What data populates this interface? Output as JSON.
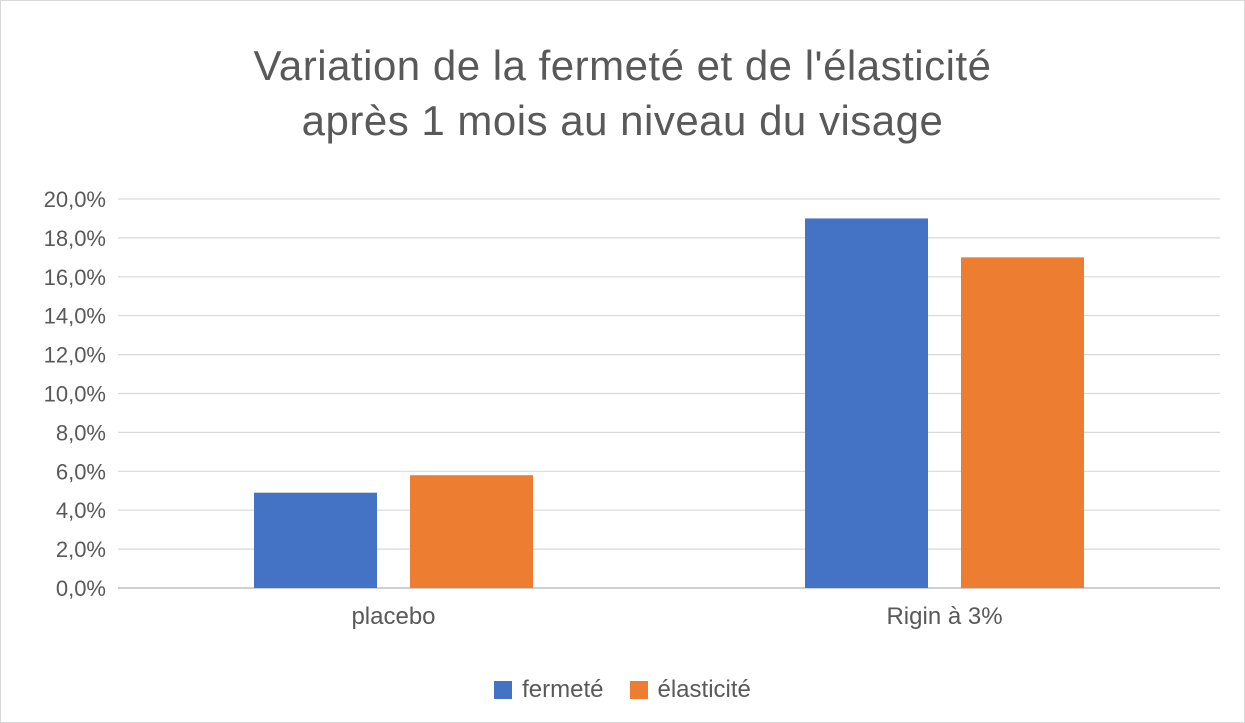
{
  "chart_data": {
    "type": "bar",
    "title_lines": [
      "Variation de la fermeté et de l'élasticité",
      "après 1 mois au niveau du visage"
    ],
    "categories": [
      "placebo",
      "Rigin à 3%"
    ],
    "series": [
      {
        "name": "fermeté",
        "color": "#4472c4",
        "values": [
          4.9,
          19.0
        ]
      },
      {
        "name": "élasticité",
        "color": "#ed7d31",
        "values": [
          5.8,
          17.0
        ]
      }
    ],
    "ylim": [
      0,
      20
    ],
    "yticks": [
      0,
      2,
      4,
      6,
      8,
      10,
      12,
      14,
      16,
      18,
      20
    ],
    "ytick_labels": [
      "0,0%",
      "2,0%",
      "4,0%",
      "6,0%",
      "8,0%",
      "10,0%",
      "12,0%",
      "14,0%",
      "16,0%",
      "18,0%",
      "20,0%"
    ],
    "grid": true,
    "legend_position": "bottom"
  }
}
